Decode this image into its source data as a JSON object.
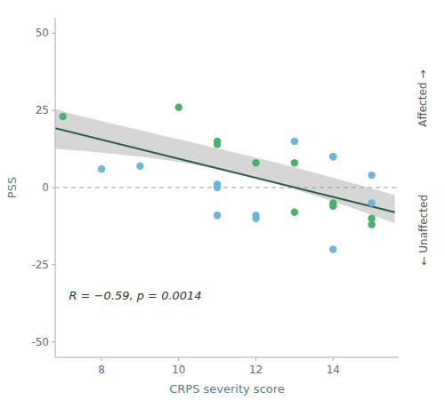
{
  "chart_data": {
    "type": "scatter",
    "xlabel": "CRPS severity score",
    "ylabel": "PSS",
    "xlim": [
      6.8,
      15.7
    ],
    "ylim": [
      -55,
      55
    ],
    "xticks": [
      8,
      10,
      12,
      14
    ],
    "yticks": [
      -50,
      -25,
      0,
      25,
      50
    ],
    "annotations": [
      "R = −0.59, p = 0.0014",
      "Affected →",
      "← Unaffected"
    ],
    "series": [
      {
        "type": "area",
        "color": "#C8C8C8",
        "x": [
          6.8,
          7.2,
          7.6,
          8.0,
          8.4,
          8.8,
          9.2,
          9.6,
          10.0,
          10.4,
          10.8,
          11.2,
          11.6,
          12.0,
          12.4,
          12.8,
          13.2,
          13.6,
          14.0,
          14.4,
          14.8,
          15.2,
          15.6
        ],
        "values": [
          25.5,
          24.0,
          22.8,
          21.5,
          20.3,
          19.2,
          18.0,
          16.8,
          15.7,
          14.5,
          13.3,
          12.1,
          10.9,
          9.7,
          8.5,
          7.2,
          5.9,
          4.5,
          3.2,
          1.8,
          0.4,
          -1.0,
          -2.5
        ],
        "lower": [
          12.5,
          12.2,
          11.8,
          11.3,
          10.8,
          10.3,
          9.7,
          9.0,
          8.3,
          7.4,
          6.5,
          5.4,
          4.3,
          3.0,
          1.7,
          0.2,
          -1.3,
          -2.9,
          -4.5,
          -6.2,
          -8.0,
          -9.8,
          -11.5
        ]
      },
      {
        "type": "line",
        "color": "#2D5A4E",
        "x": [
          6.8,
          15.6
        ],
        "values": [
          19.2,
          -8.0
        ]
      },
      {
        "type": "hline",
        "color": "#999999",
        "line_style": "dashed",
        "values": [
          0
        ]
      },
      {
        "type": "scatter",
        "color": "#6EB4DE",
        "x": [
          8,
          9,
          11,
          11,
          11,
          12,
          12,
          13,
          14,
          14,
          14,
          15,
          15
        ],
        "values": [
          6,
          7,
          1,
          0,
          -9,
          -9,
          -10,
          15,
          10,
          10,
          -20,
          4,
          -5
        ]
      },
      {
        "type": "scatter",
        "color": "#4CAF6E",
        "x": [
          7,
          10,
          11,
          11,
          12,
          13,
          13,
          14,
          14,
          15,
          15
        ],
        "values": [
          23,
          26,
          15,
          14,
          8,
          8,
          -8,
          -5,
          -6,
          -10,
          -12
        ]
      }
    ]
  }
}
